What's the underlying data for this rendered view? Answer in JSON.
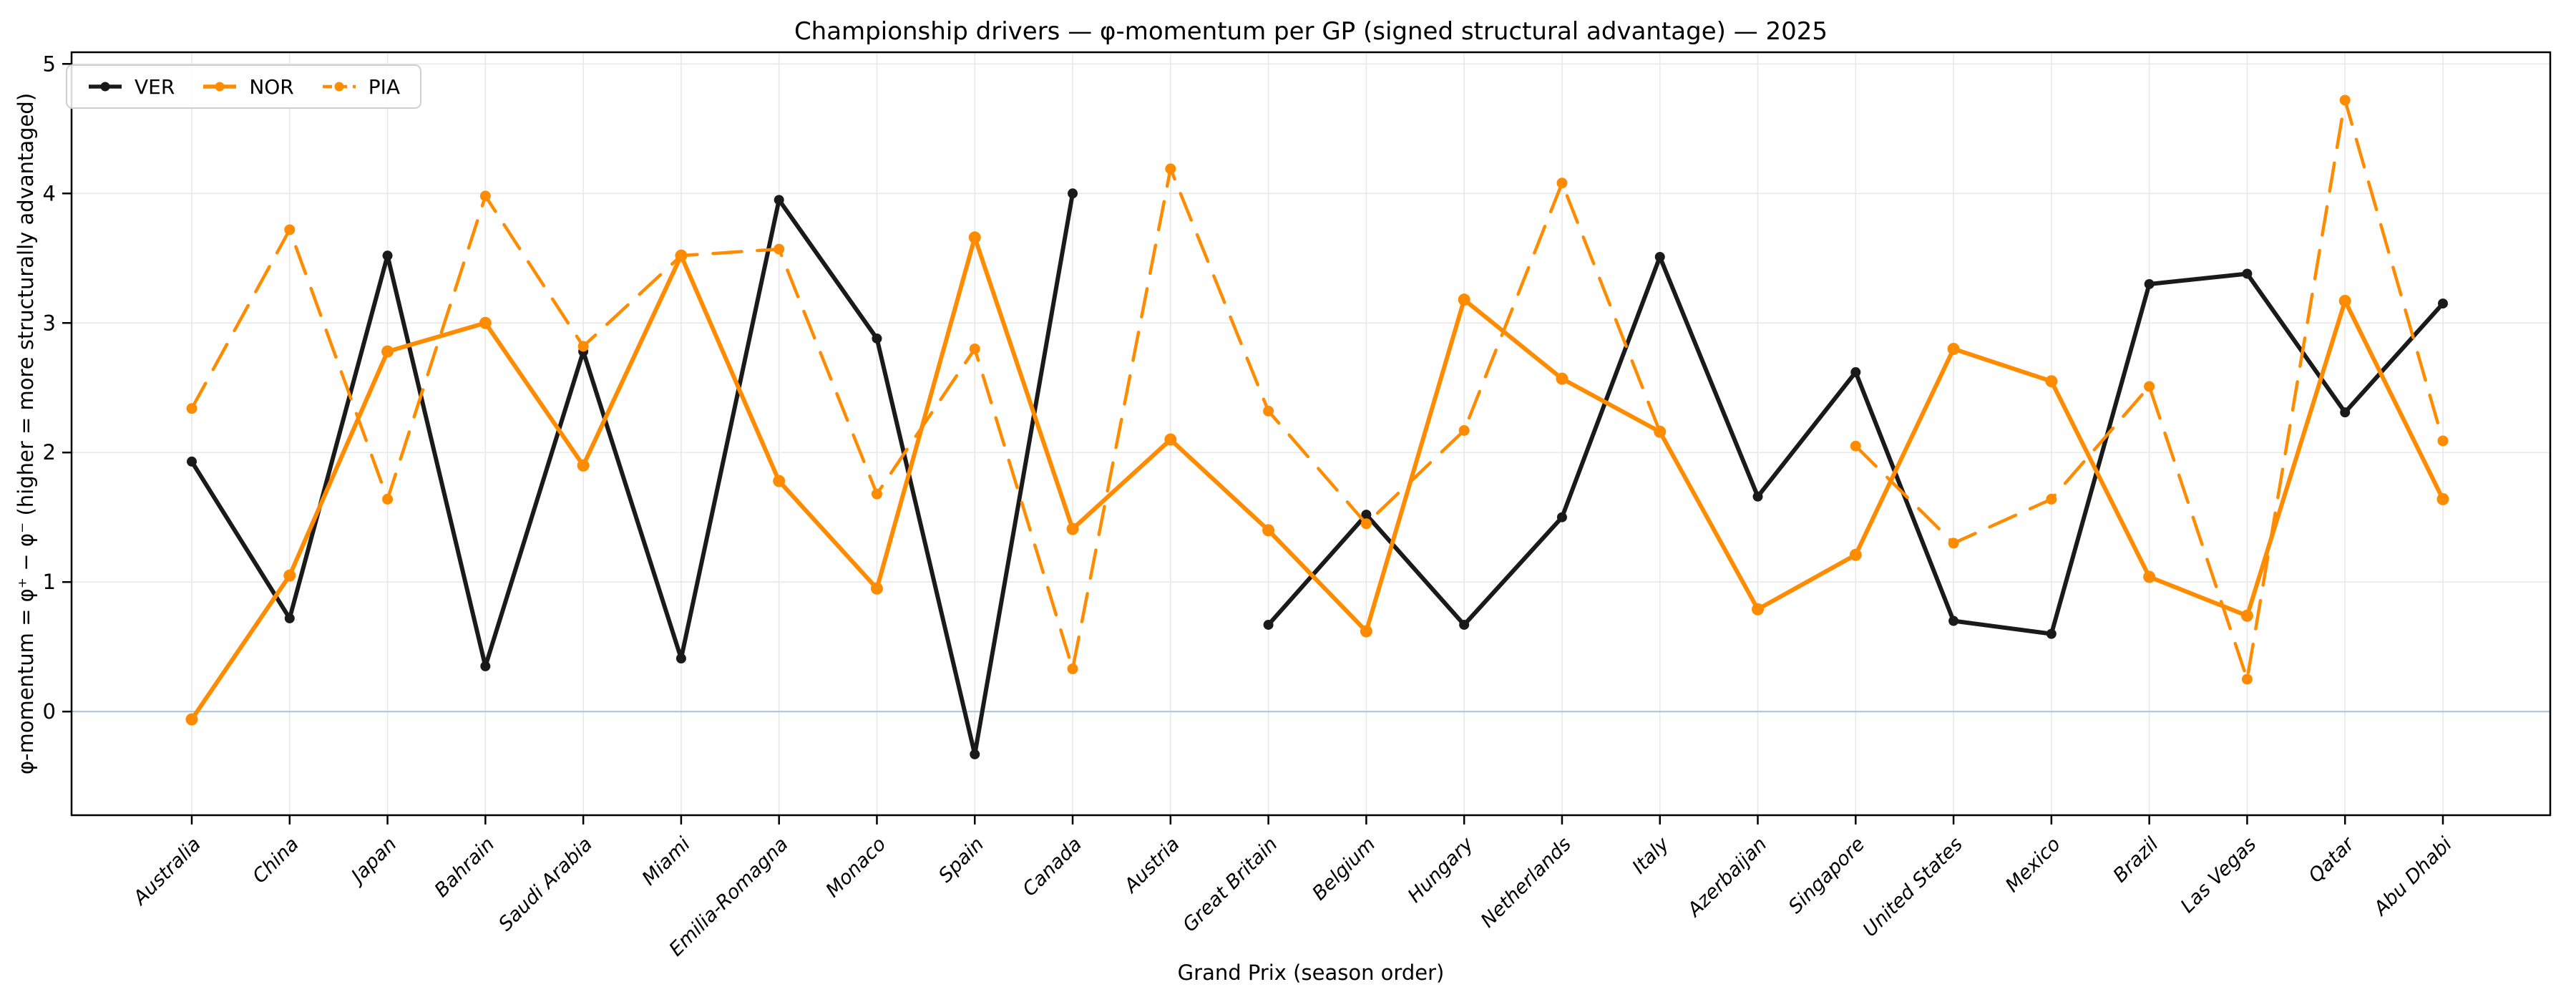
{
  "title": "Championship drivers — φ-momentum per GP (signed structural advantage) — 2025",
  "legend": {
    "items": [
      {
        "label": "VER"
      },
      {
        "label": "NOR"
      },
      {
        "label": "PIA"
      }
    ]
  },
  "axes": {
    "xlabel": "Grand Prix (season order)",
    "ylabel": "φ-momentum = φ⁺ − φ⁻  (higher = more structurally advantaged)",
    "yticks": [
      0,
      1,
      2,
      3,
      4,
      5
    ]
  },
  "colors": {
    "ver": "#1a1a1a",
    "papaya": "#ff8c00",
    "zero_line": "#aac6e4",
    "grid": "#e8e8e8",
    "spine": "#000000"
  },
  "chart_data": {
    "type": "line",
    "title": "Championship drivers — φ-momentum per GP (signed structural advantage) — 2025",
    "xlabel": "Grand Prix (season order)",
    "ylabel": "φ-momentum = φ⁺ − φ⁻  (higher = more structurally advantaged)",
    "ylim": [
      -0.8,
      5.09
    ],
    "grid": true,
    "zero_line": true,
    "legend_position": "upper left",
    "categories": [
      "Australia",
      "China",
      "Japan",
      "Bahrain",
      "Saudi Arabia",
      "Miami",
      "Emilia-Romagna",
      "Monaco",
      "Spain",
      "Canada",
      "Austria",
      "Great Britain",
      "Belgium",
      "Hungary",
      "Netherlands",
      "Italy",
      "Azerbaijan",
      "Singapore",
      "United States",
      "Mexico",
      "Brazil",
      "Las Vegas",
      "Qatar",
      "Abu Dhabi"
    ],
    "series": [
      {
        "name": "VER",
        "color": "#1a1a1a",
        "style": "solid",
        "linewidth": 6,
        "marker_r": 7,
        "values": [
          1.93,
          0.72,
          3.52,
          0.35,
          2.78,
          0.41,
          3.95,
          2.88,
          -0.33,
          4.0,
          null,
          0.67,
          1.52,
          0.67,
          1.5,
          3.51,
          1.66,
          2.62,
          0.7,
          0.6,
          3.3,
          3.38,
          2.31,
          3.15
        ]
      },
      {
        "name": "NOR",
        "color": "#ff8c00",
        "style": "solid",
        "linewidth": 6,
        "marker_r": 8.5,
        "values": [
          -0.06,
          1.05,
          2.78,
          3.0,
          1.9,
          3.52,
          1.78,
          0.95,
          3.66,
          1.41,
          2.1,
          1.4,
          0.62,
          3.18,
          2.57,
          2.16,
          0.79,
          1.21,
          2.8,
          2.55,
          1.04,
          0.74,
          3.17,
          1.64
        ]
      },
      {
        "name": "PIA",
        "color": "#ff8c00",
        "style": "dashed",
        "linewidth": 4.5,
        "marker_r": 7.5,
        "values": [
          2.34,
          3.72,
          1.64,
          3.98,
          2.82,
          3.52,
          3.57,
          1.68,
          2.8,
          0.33,
          4.19,
          2.32,
          1.45,
          2.17,
          4.08,
          2.16,
          null,
          2.05,
          1.3,
          1.64,
          2.51,
          0.25,
          4.72,
          2.09
        ]
      }
    ]
  }
}
